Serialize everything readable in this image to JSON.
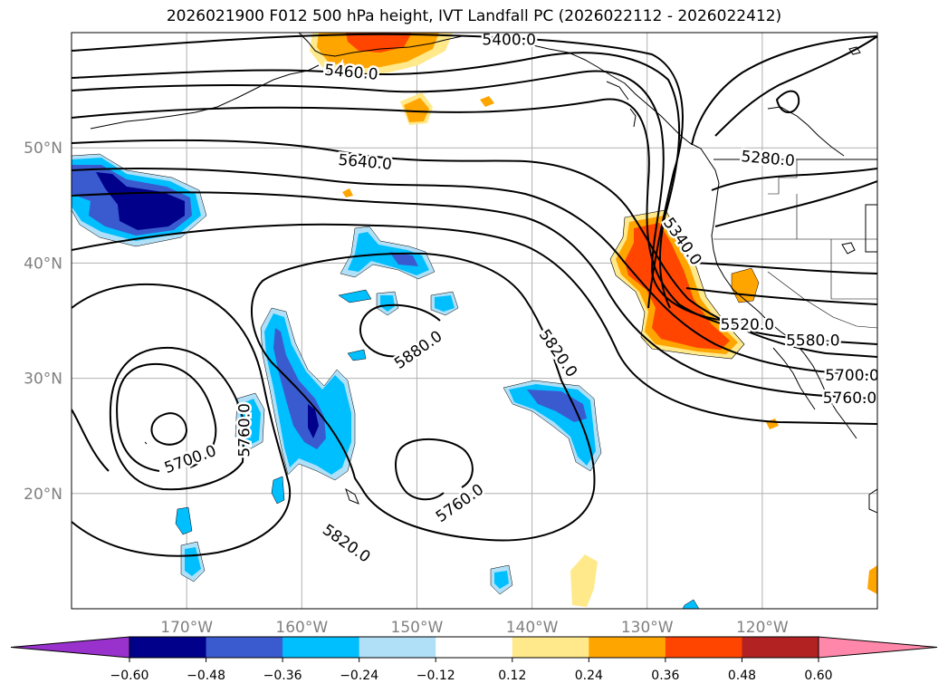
{
  "title": "2026021900 F012 500 hPa height, IVT Landfall PC (2026022112 - 2026022412)",
  "map": {
    "projection": "PlateCarree",
    "lon_range": [
      -180,
      -110
    ],
    "lat_range": [
      10,
      60
    ],
    "grid": true,
    "lat_ticks": [
      {
        "value": 20,
        "label": "20°N"
      },
      {
        "value": 30,
        "label": "30°N"
      },
      {
        "value": 40,
        "label": "40°N"
      },
      {
        "value": 50,
        "label": "50°N"
      }
    ],
    "lon_ticks": [
      {
        "value": -170,
        "label": "170°W"
      },
      {
        "value": -160,
        "label": "160°W"
      },
      {
        "value": -150,
        "label": "150°W"
      },
      {
        "value": -140,
        "label": "140°W"
      },
      {
        "value": -130,
        "label": "130°W"
      },
      {
        "value": -120,
        "label": "120°W"
      }
    ],
    "contour_labels": [
      {
        "text": "5400.0",
        "lon": -142,
        "lat": 59.4,
        "angle": 0
      },
      {
        "text": "5460.0",
        "lon": -155.7,
        "lat": 56.6,
        "angle": 5
      },
      {
        "text": "5640.0",
        "lon": -154.5,
        "lat": 48.8,
        "angle": 5
      },
      {
        "text": "5280.0",
        "lon": -119.5,
        "lat": 49.1,
        "angle": 5
      },
      {
        "text": "5340.0",
        "lon": -126.9,
        "lat": 41.9,
        "angle": 55
      },
      {
        "text": "5520.0",
        "lon": -121.3,
        "lat": 34.7,
        "angle": 0
      },
      {
        "text": "5580.0",
        "lon": -115.6,
        "lat": 33.3,
        "angle": 0
      },
      {
        "text": "5700.0",
        "lon": -112.2,
        "lat": 30.3,
        "angle": 0
      },
      {
        "text": "5760.0",
        "lon": -112.4,
        "lat": 28.3,
        "angle": 0
      },
      {
        "text": "5820.0",
        "lon": -137.7,
        "lat": 32.2,
        "angle": 55
      },
      {
        "text": "5880.0",
        "lon": -149.9,
        "lat": 32.5,
        "angle": -35
      },
      {
        "text": "5700.0",
        "lon": -169.7,
        "lat": 23.0,
        "angle": -20
      },
      {
        "text": "5760.0",
        "lon": -165,
        "lat": 25.5,
        "angle": -90
      },
      {
        "text": "5760.0",
        "lon": -146.3,
        "lat": 19.2,
        "angle": -35
      },
      {
        "text": "5820.0",
        "lon": -156.1,
        "lat": 15.7,
        "angle": 35
      }
    ]
  },
  "colorbar": {
    "ticks": [
      "−0.60",
      "−0.48",
      "−0.36",
      "−0.24",
      "−0.12",
      "0.12",
      "0.24",
      "0.36",
      "0.48",
      "0.60"
    ],
    "under_color": "#9932cc",
    "over_color": "#ff88aa",
    "colors": [
      "#00008b",
      "#3a5bd0",
      "#00bfff",
      "#b0e0f8",
      "#ffffff",
      "#ffe98a",
      "#ffa500",
      "#ff4500",
      "#b22222"
    ]
  }
}
